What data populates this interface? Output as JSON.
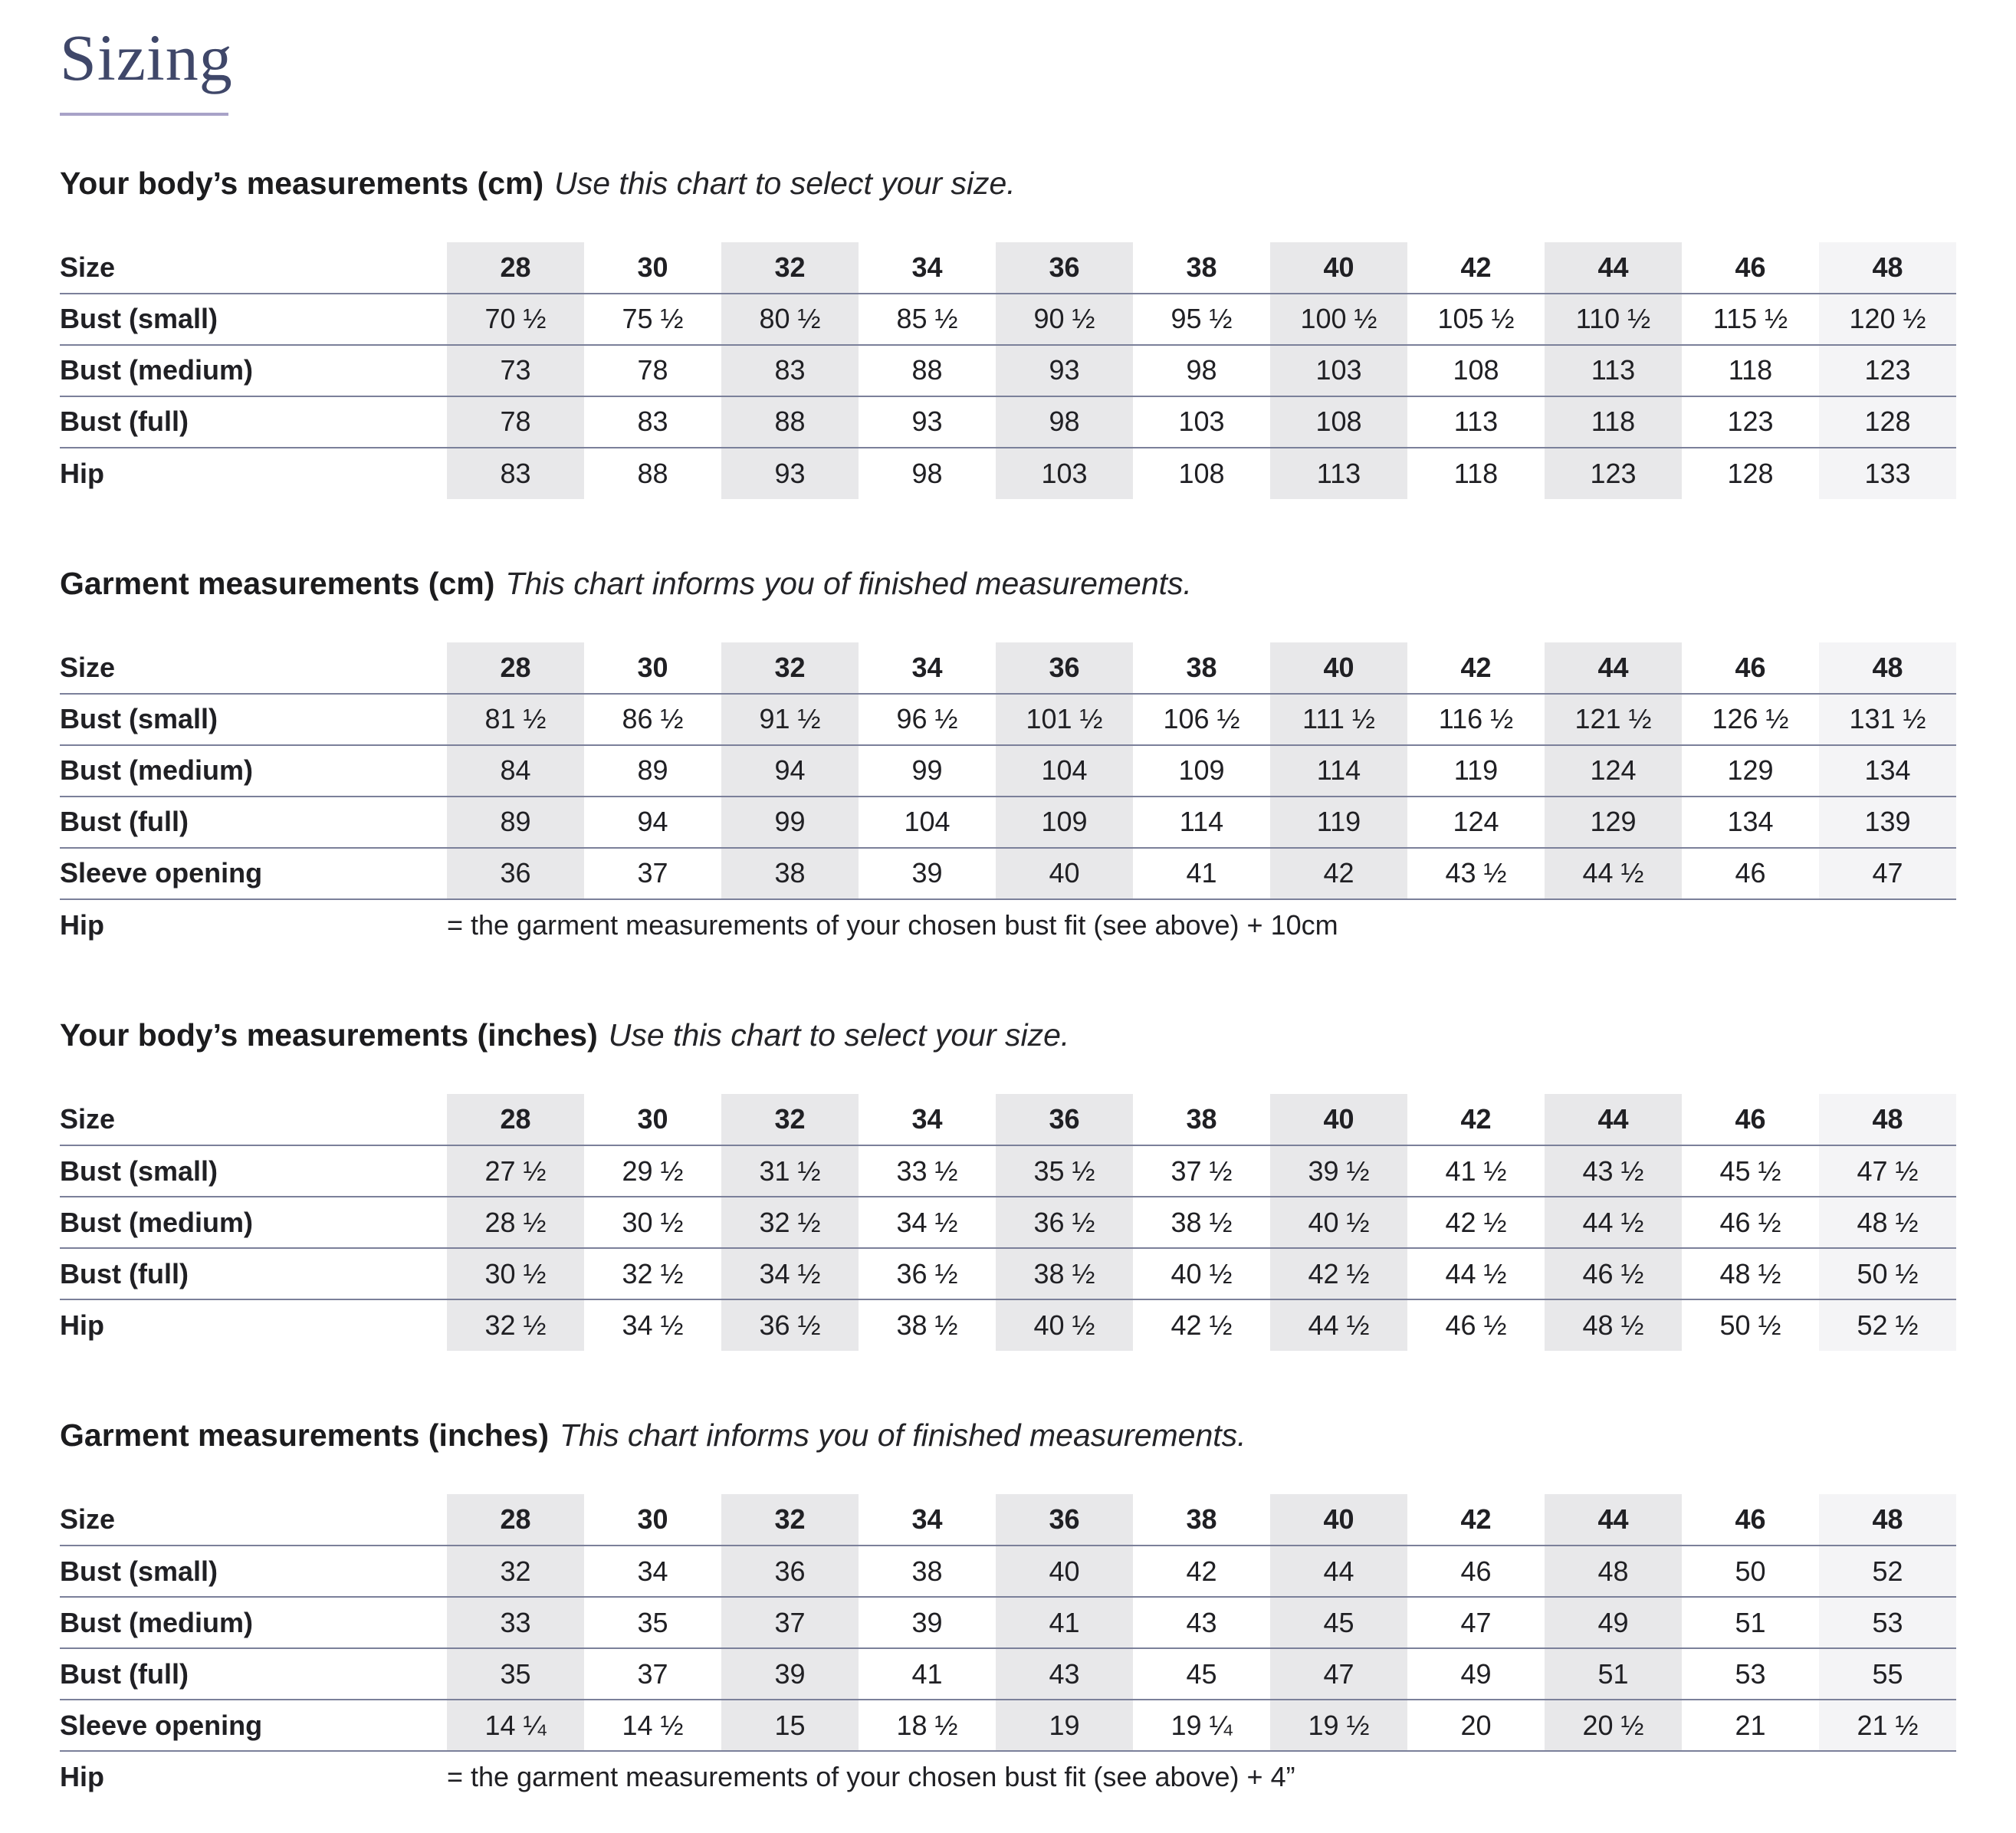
{
  "page": {
    "title": "Sizing"
  },
  "sections": [
    {
      "heading": "Your body’s measurements (cm)",
      "subheading": "Use this chart to select your size.",
      "size_label": "Size",
      "sizes": [
        "28",
        "30",
        "32",
        "34",
        "36",
        "38",
        "40",
        "42",
        "44",
        "46",
        "48"
      ],
      "rows": [
        {
          "label": "Bust (small)",
          "values": [
            "70 ½",
            "75 ½",
            "80 ½",
            "85 ½",
            "90 ½",
            "95 ½",
            "100 ½",
            "105 ½",
            "110 ½",
            "115 ½",
            "120 ½"
          ]
        },
        {
          "label": "Bust (medium)",
          "values": [
            "73",
            "78",
            "83",
            "88",
            "93",
            "98",
            "103",
            "108",
            "113",
            "118",
            "123"
          ]
        },
        {
          "label": "Bust (full)",
          "values": [
            "78",
            "83",
            "88",
            "93",
            "98",
            "103",
            "108",
            "113",
            "118",
            "123",
            "128"
          ]
        },
        {
          "label": "Hip",
          "values": [
            "83",
            "88",
            "93",
            "98",
            "103",
            "108",
            "113",
            "118",
            "123",
            "128",
            "133"
          ]
        }
      ]
    },
    {
      "heading": "Garment measurements (cm)",
      "subheading": "This chart informs you of finished measurements.",
      "size_label": "Size",
      "sizes": [
        "28",
        "30",
        "32",
        "34",
        "36",
        "38",
        "40",
        "42",
        "44",
        "46",
        "48"
      ],
      "rows": [
        {
          "label": "Bust (small)",
          "values": [
            "81 ½",
            "86 ½",
            "91 ½",
            "96 ½",
            "101 ½",
            "106 ½",
            "111 ½",
            "116 ½",
            "121 ½",
            "126 ½",
            "131 ½"
          ]
        },
        {
          "label": "Bust (medium)",
          "values": [
            "84",
            "89",
            "94",
            "99",
            "104",
            "109",
            "114",
            "119",
            "124",
            "129",
            "134"
          ]
        },
        {
          "label": "Bust (full)",
          "values": [
            "89",
            "94",
            "99",
            "104",
            "109",
            "114",
            "119",
            "124",
            "129",
            "134",
            "139"
          ]
        },
        {
          "label": "Sleeve opening",
          "values": [
            "36",
            "37",
            "38",
            "39",
            "40",
            "41",
            "42",
            "43 ½",
            "44 ½",
            "46",
            "47"
          ]
        }
      ],
      "note": {
        "label": "Hip",
        "text": "= the garment measurements of your chosen bust fit (see above) + 10cm"
      }
    },
    {
      "heading": "Your body’s measurements (inches)",
      "subheading": "Use this chart to select your size.",
      "size_label": "Size",
      "sizes": [
        "28",
        "30",
        "32",
        "34",
        "36",
        "38",
        "40",
        "42",
        "44",
        "46",
        "48"
      ],
      "rows": [
        {
          "label": "Bust (small)",
          "values": [
            "27 ½",
            "29 ½",
            "31 ½",
            "33 ½",
            "35 ½",
            "37 ½",
            "39 ½",
            "41 ½",
            "43 ½",
            "45 ½",
            "47 ½"
          ]
        },
        {
          "label": "Bust (medium)",
          "values": [
            "28 ½",
            "30 ½",
            "32 ½",
            "34 ½",
            "36 ½",
            "38 ½",
            "40 ½",
            "42 ½",
            "44 ½",
            "46 ½",
            "48 ½"
          ]
        },
        {
          "label": "Bust (full)",
          "values": [
            "30 ½",
            "32 ½",
            "34 ½",
            "36 ½",
            "38 ½",
            "40 ½",
            "42 ½",
            "44 ½",
            "46 ½",
            "48 ½",
            "50 ½"
          ]
        },
        {
          "label": "Hip",
          "values": [
            "32 ½",
            "34 ½",
            "36 ½",
            "38 ½",
            "40 ½",
            "42 ½",
            "44 ½",
            "46 ½",
            "48 ½",
            "50 ½",
            "52 ½"
          ]
        }
      ]
    },
    {
      "heading": "Garment measurements (inches)",
      "subheading": "This chart informs you of finished measurements.",
      "size_label": "Size",
      "sizes": [
        "28",
        "30",
        "32",
        "34",
        "36",
        "38",
        "40",
        "42",
        "44",
        "46",
        "48"
      ],
      "rows": [
        {
          "label": "Bust (small)",
          "values": [
            "32",
            "34",
            "36",
            "38",
            "40",
            "42",
            "44",
            "46",
            "48",
            "50",
            "52"
          ]
        },
        {
          "label": "Bust (medium)",
          "values": [
            "33",
            "35",
            "37",
            "39",
            "41",
            "43",
            "45",
            "47",
            "49",
            "51",
            "53"
          ]
        },
        {
          "label": "Bust (full)",
          "values": [
            "35",
            "37",
            "39",
            "41",
            "43",
            "45",
            "47",
            "49",
            "51",
            "53",
            "55"
          ]
        },
        {
          "label": "Sleeve opening",
          "values": [
            "14 ¼",
            "14 ½",
            "15",
            "18 ½",
            "19",
            "19 ¼",
            "19 ½",
            "20",
            "20 ½",
            "21",
            "21 ½"
          ]
        }
      ],
      "note": {
        "label": "Hip",
        "text": "= the garment measurements of your chosen bust fit (see above) + 4”"
      }
    }
  ]
}
